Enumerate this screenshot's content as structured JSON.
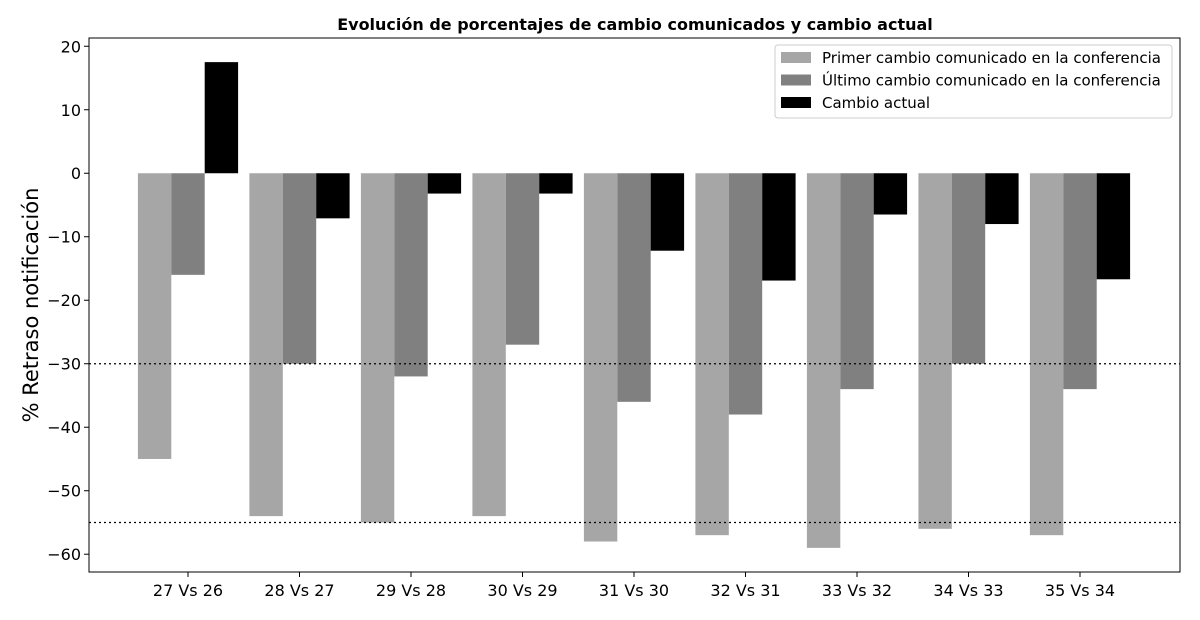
{
  "chart_data": {
    "type": "bar",
    "title": "Evolución de porcentajes de cambio comunicados y cambio actual",
    "xlabel": "",
    "ylabel": "% Retraso notificación",
    "ylim": [
      -62.8,
      21.3
    ],
    "yticks": [
      20,
      10,
      0,
      -10,
      -20,
      -30,
      -40,
      -50,
      -60
    ],
    "categories": [
      "27 Vs 26",
      "28 Vs 27",
      "29 Vs 28",
      "30 Vs 29",
      "31 Vs 30",
      "32 Vs 31",
      "33 Vs 32",
      "34 Vs 33",
      "35 Vs 34"
    ],
    "series": [
      {
        "name": "Primer cambio comunicado en la conferencia",
        "color": "#a6a6a6",
        "values": [
          -45,
          -54,
          -55,
          -54,
          -58,
          -57,
          -59,
          -56,
          -57
        ]
      },
      {
        "name": "Último cambio comunicado en la conferencia",
        "color": "#808080",
        "values": [
          -16,
          -30,
          -32,
          -27,
          -36,
          -38,
          -34,
          -30,
          -34
        ]
      },
      {
        "name": "Cambio actual",
        "color": "#000000",
        "values": [
          17.5,
          -7.1,
          -3.2,
          -3.2,
          -12.2,
          -16.9,
          -6.5,
          -8,
          -16.7
        ]
      }
    ],
    "reference_lines": [
      -30,
      -55
    ],
    "reference_line_style": "dotted",
    "grid": false,
    "legend_position": "top-right"
  }
}
